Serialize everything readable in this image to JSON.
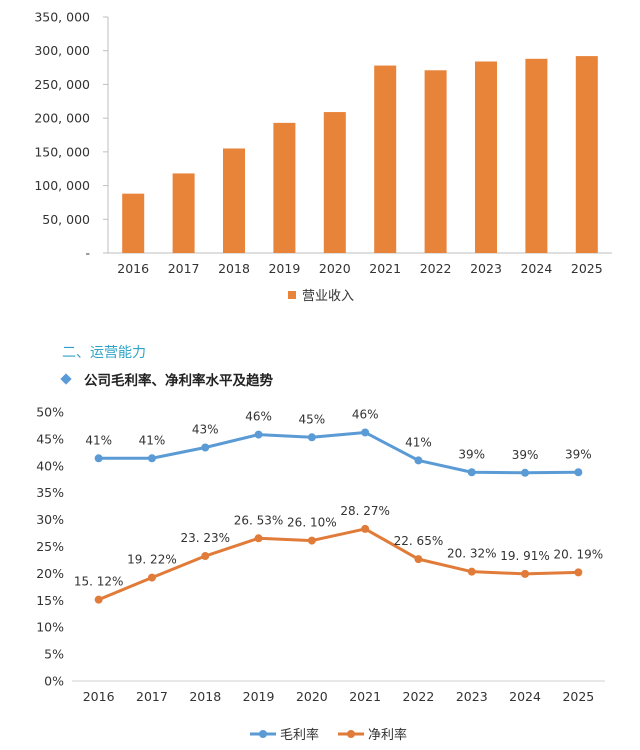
{
  "section": {
    "heading": "二、运营能力",
    "subheading": "公司毛利率、净利率水平及趋势",
    "bullet_icon": "diamond-bullet-icon"
  },
  "chart_data": [
    {
      "type": "bar",
      "categories": [
        "2016",
        "2017",
        "2018",
        "2019",
        "2020",
        "2021",
        "2022",
        "2023",
        "2024",
        "2025"
      ],
      "series": [
        {
          "name": "营业收入",
          "values": [
            88000,
            118000,
            155000,
            193000,
            209000,
            278000,
            271000,
            284000,
            288000,
            292000
          ],
          "color": "#e8833a"
        }
      ],
      "yticks": [
        "-",
        "50, 000",
        "100, 000",
        "150, 000",
        "200, 000",
        "250, 000",
        "300, 000",
        "350, 000"
      ],
      "ylim": [
        0,
        350000
      ],
      "legend": "bottom",
      "grid": false
    },
    {
      "type": "line",
      "categories": [
        "2016",
        "2017",
        "2018",
        "2019",
        "2020",
        "2021",
        "2022",
        "2023",
        "2024",
        "2025"
      ],
      "series": [
        {
          "name": "毛利率",
          "values": [
            41.4,
            41.4,
            43.4,
            45.8,
            45.3,
            46.2,
            41.0,
            38.8,
            38.7,
            38.8
          ],
          "labels": [
            "41%",
            "41%",
            "43%",
            "46%",
            "45%",
            "46%",
            "41%",
            "39%",
            "39%",
            "39%"
          ],
          "color": "#5b9bd5"
        },
        {
          "name": "净利率",
          "values": [
            15.12,
            19.22,
            23.23,
            26.53,
            26.1,
            28.27,
            22.65,
            20.32,
            19.91,
            20.19
          ],
          "labels": [
            "15. 12%",
            "19. 22%",
            "23. 23%",
            "26. 53%",
            "26. 10%",
            "28. 27%",
            "22. 65%",
            "20. 32%",
            "19. 91%",
            "20. 19%"
          ],
          "color": "#e07b39"
        }
      ],
      "yticks": [
        "0%",
        "5%",
        "10%",
        "15%",
        "20%",
        "25%",
        "30%",
        "35%",
        "40%",
        "45%",
        "50%"
      ],
      "ylim": [
        0,
        50
      ],
      "legend": "bottom",
      "grid": false
    }
  ]
}
